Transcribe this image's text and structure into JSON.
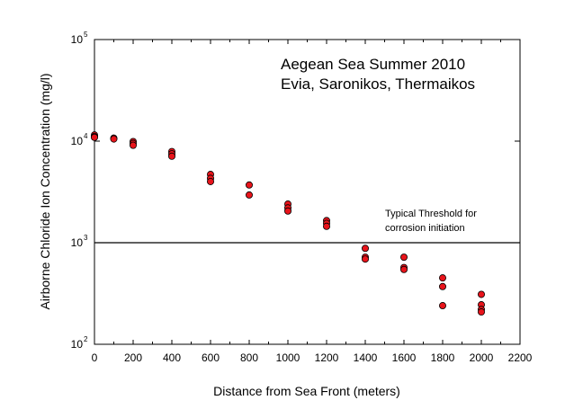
{
  "chart_data": {
    "type": "scatter",
    "title_lines": [
      "Aegean Sea Summer 2010",
      "Evia, Saronikos, Thermaikos"
    ],
    "xlabel": "Distance from Sea Front (meters)",
    "ylabel": "Airborne Chloride Ion Concentration (mg/l)",
    "xlim": [
      0,
      2200
    ],
    "ylim": [
      100,
      100000
    ],
    "y_scale": "log",
    "x_ticks": [
      "0",
      "200",
      "400",
      "600",
      "800",
      "1000",
      "1200",
      "1400",
      "1600",
      "1800",
      "2000",
      "2200"
    ],
    "y_ticks": [
      {
        "base": "10",
        "exp": "2"
      },
      {
        "base": "10",
        "exp": "3"
      },
      {
        "base": "10",
        "exp": "4"
      },
      {
        "base": "10",
        "exp": "5"
      }
    ],
    "grid": false,
    "marker_color": "#e8141b",
    "threshold": {
      "value": 1000,
      "label_lines": [
        "Typical Threshold for",
        "corrosion initiation"
      ]
    },
    "points": [
      {
        "x": 0,
        "y": 11500
      },
      {
        "x": 0,
        "y": 11100
      },
      {
        "x": 0,
        "y": 10900
      },
      {
        "x": 100,
        "y": 10700
      },
      {
        "x": 100,
        "y": 10500
      },
      {
        "x": 200,
        "y": 9900
      },
      {
        "x": 200,
        "y": 9500
      },
      {
        "x": 200,
        "y": 9100
      },
      {
        "x": 400,
        "y": 7900
      },
      {
        "x": 400,
        "y": 7500
      },
      {
        "x": 400,
        "y": 7100
      },
      {
        "x": 600,
        "y": 4700
      },
      {
        "x": 600,
        "y": 4300
      },
      {
        "x": 600,
        "y": 4000
      },
      {
        "x": 800,
        "y": 3700
      },
      {
        "x": 800,
        "y": 2950
      },
      {
        "x": 1000,
        "y": 2400
      },
      {
        "x": 1000,
        "y": 2200
      },
      {
        "x": 1000,
        "y": 2050
      },
      {
        "x": 1200,
        "y": 1650
      },
      {
        "x": 1200,
        "y": 1550
      },
      {
        "x": 1200,
        "y": 1450
      },
      {
        "x": 1400,
        "y": 880
      },
      {
        "x": 1400,
        "y": 720
      },
      {
        "x": 1400,
        "y": 690
      },
      {
        "x": 1600,
        "y": 720
      },
      {
        "x": 1600,
        "y": 570
      },
      {
        "x": 1600,
        "y": 545
      },
      {
        "x": 1800,
        "y": 450
      },
      {
        "x": 1800,
        "y": 370
      },
      {
        "x": 1800,
        "y": 240
      },
      {
        "x": 2000,
        "y": 310
      },
      {
        "x": 2000,
        "y": 245
      },
      {
        "x": 2000,
        "y": 220
      },
      {
        "x": 2000,
        "y": 208
      }
    ]
  }
}
